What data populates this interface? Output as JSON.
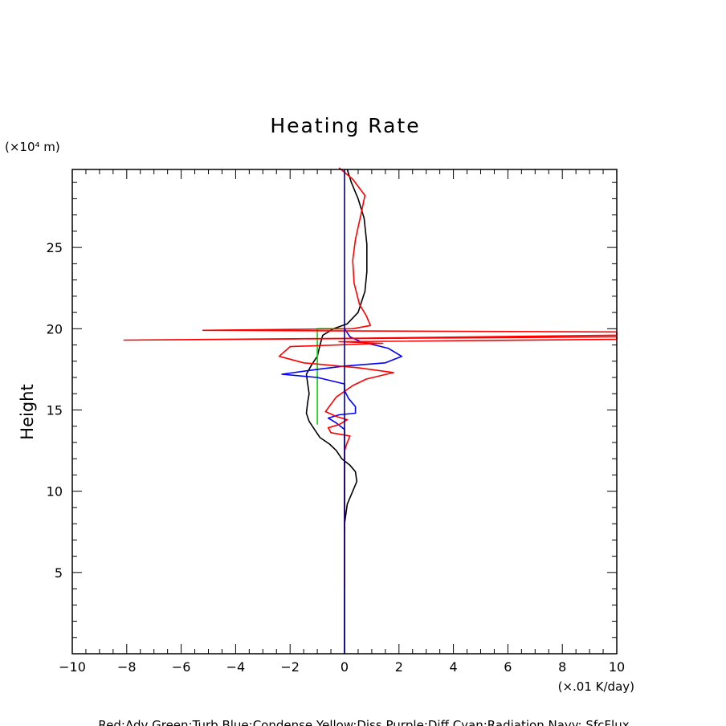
{
  "chart_data": {
    "type": "line",
    "title": "Heating Rate",
    "ylabel": "Height",
    "y_units": "(×10⁴ m)",
    "x_units": "(×.01 K/day)",
    "xlim": [
      -10,
      10
    ],
    "ylim": [
      0,
      29.8
    ],
    "x_ticks": [
      -10,
      -8,
      -6,
      -4,
      -2,
      0,
      2,
      4,
      6,
      8,
      10
    ],
    "y_ticks": [
      5,
      10,
      15,
      20,
      25
    ],
    "grid": false,
    "footer_legend": "Red:Adv  Green:Turb  Blue:Condense  Yellow:Diss  Purple:Diff  Cyan:Radiation  Navy: SfcFlux",
    "series": [
      {
        "color": "#000000",
        "points": [
          [
            0.1,
            29.8
          ],
          [
            0.25,
            29.0
          ],
          [
            0.5,
            28.0
          ],
          [
            0.72,
            26.8
          ],
          [
            0.82,
            25.2
          ],
          [
            0.82,
            23.5
          ],
          [
            0.75,
            22.3
          ],
          [
            0.5,
            21.0
          ],
          [
            0.1,
            20.3
          ],
          [
            -0.4,
            20.0
          ],
          [
            -0.8,
            19.6
          ],
          [
            -0.9,
            19.0
          ],
          [
            -1.0,
            18.3
          ],
          [
            -1.2,
            17.8
          ],
          [
            -1.4,
            17.2
          ],
          [
            -1.35,
            16.6
          ],
          [
            -1.3,
            16.0
          ],
          [
            -1.35,
            15.5
          ],
          [
            -1.4,
            14.8
          ],
          [
            -1.3,
            14.3
          ],
          [
            -1.1,
            13.8
          ],
          [
            -0.9,
            13.3
          ],
          [
            -0.55,
            12.9
          ],
          [
            -0.3,
            12.5
          ],
          [
            -0.1,
            12.0
          ],
          [
            0.2,
            11.6
          ],
          [
            0.4,
            11.2
          ],
          [
            0.45,
            10.6
          ],
          [
            0.3,
            10.0
          ],
          [
            0.1,
            9.2
          ],
          [
            0.05,
            8.6
          ],
          [
            0.0,
            8.0
          ],
          [
            0.0,
            7.5
          ]
        ]
      },
      {
        "color": "#00dd00",
        "points": [
          [
            -1.0,
            14.1
          ],
          [
            -1.0,
            17.8
          ],
          [
            -1.0,
            20.0
          ],
          [
            -0.1,
            20.0
          ]
        ]
      },
      {
        "color": "#0000ff",
        "points": [
          [
            0.0,
            0.0
          ],
          [
            0.0,
            13.8
          ],
          [
            -0.3,
            14.2
          ],
          [
            -0.6,
            14.5
          ],
          [
            -0.2,
            14.7
          ],
          [
            0.4,
            14.8
          ],
          [
            0.4,
            15.2
          ],
          [
            0.15,
            15.7
          ],
          [
            0.0,
            16.2
          ],
          [
            0.0,
            16.6
          ],
          [
            -1.0,
            17.0
          ],
          [
            -2.3,
            17.2
          ],
          [
            -1.0,
            17.5
          ],
          [
            0.0,
            17.7
          ],
          [
            1.5,
            17.9
          ],
          [
            2.1,
            18.3
          ],
          [
            1.6,
            18.8
          ],
          [
            0.6,
            19.2
          ],
          [
            0.2,
            19.5
          ],
          [
            0.0,
            20.0
          ]
        ]
      },
      {
        "color": "#ff0000",
        "points": [
          [
            -0.2,
            29.9
          ],
          [
            0.3,
            29.2
          ],
          [
            0.75,
            28.2
          ],
          [
            0.6,
            27.0
          ],
          [
            0.4,
            25.5
          ],
          [
            0.3,
            24.2
          ],
          [
            0.35,
            22.8
          ],
          [
            0.55,
            21.5
          ],
          [
            0.8,
            20.8
          ],
          [
            0.95,
            20.2
          ],
          [
            0.3,
            20.0
          ],
          [
            -5.2,
            19.9
          ],
          [
            10.0,
            19.8
          ],
          [
            10.0,
            19.6
          ],
          [
            -0.2,
            19.4
          ],
          [
            -8.1,
            19.3
          ],
          [
            10.0,
            19.5
          ],
          [
            10.0,
            19.35
          ],
          [
            -0.2,
            19.2
          ],
          [
            1.4,
            19.1
          ],
          [
            -2.0,
            18.9
          ],
          [
            -2.4,
            18.3
          ],
          [
            -1.5,
            17.9
          ],
          [
            0.5,
            17.6
          ],
          [
            1.8,
            17.3
          ],
          [
            0.8,
            16.9
          ],
          [
            0.3,
            16.5
          ],
          [
            -0.3,
            15.8
          ],
          [
            -0.7,
            14.9
          ],
          [
            -0.3,
            14.6
          ],
          [
            0.1,
            14.4
          ],
          [
            -0.2,
            14.1
          ],
          [
            -0.6,
            13.9
          ],
          [
            -0.5,
            13.6
          ],
          [
            0.2,
            13.4
          ],
          [
            0.1,
            13.0
          ],
          [
            0.0,
            12.5
          ],
          [
            0.0,
            8.0
          ],
          [
            0.0,
            4.0
          ]
        ]
      },
      {
        "color": "#000080",
        "points": [
          [
            0.0,
            0.0
          ],
          [
            0.0,
            29.8
          ]
        ]
      }
    ]
  }
}
